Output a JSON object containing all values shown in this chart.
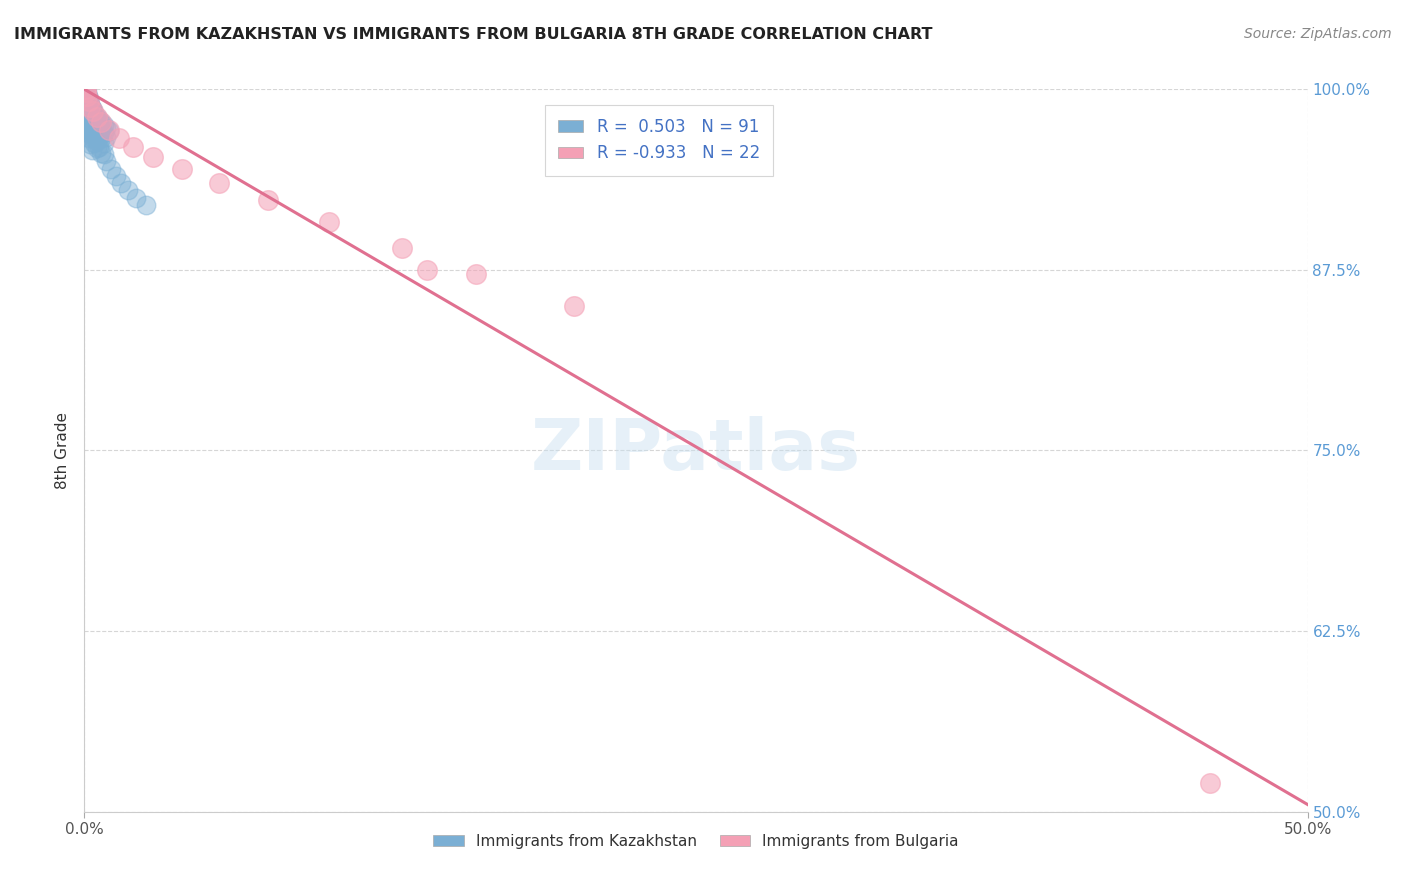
{
  "title": "IMMIGRANTS FROM KAZAKHSTAN VS IMMIGRANTS FROM BULGARIA 8TH GRADE CORRELATION CHART",
  "source": "Source: ZipAtlas.com",
  "ylabel_label": "8th Grade",
  "xlim": [
    0.0,
    50.0
  ],
  "ylim": [
    50.0,
    100.0
  ],
  "color_blue": "#7bafd4",
  "color_pink": "#f4a0b5",
  "line_color": "#e07090",
  "blue_scatter_x": [
    0.05,
    0.08,
    0.1,
    0.12,
    0.15,
    0.18,
    0.2,
    0.22,
    0.25,
    0.28,
    0.3,
    0.35,
    0.4,
    0.45,
    0.5,
    0.05,
    0.08,
    0.1,
    0.15,
    0.2,
    0.25,
    0.3,
    0.35,
    0.4,
    0.5,
    0.6,
    0.7,
    0.8,
    0.9,
    1.0,
    0.05,
    0.1,
    0.15,
    0.2,
    0.25,
    0.3,
    0.35,
    0.4,
    0.5,
    0.6,
    0.7,
    0.8,
    0.9,
    0.05,
    0.1,
    0.15,
    0.2,
    0.25,
    0.3,
    0.35,
    0.4,
    0.5,
    0.6,
    0.7,
    0.8,
    0.05,
    0.1,
    0.15,
    0.2,
    0.25,
    0.3,
    0.35,
    0.4,
    0.5,
    0.6,
    0.7,
    0.05,
    0.1,
    0.15,
    0.2,
    0.25,
    0.3,
    0.35,
    0.4,
    0.5,
    0.05,
    0.1,
    0.15,
    0.2,
    0.25,
    0.3,
    0.8,
    0.9,
    1.1,
    1.3,
    1.5,
    1.8,
    2.1,
    2.5
  ],
  "blue_scatter_y": [
    100.0,
    100.0,
    99.8,
    99.6,
    99.5,
    99.3,
    99.1,
    98.9,
    98.8,
    98.6,
    98.5,
    98.3,
    98.1,
    97.9,
    97.8,
    99.9,
    99.7,
    99.5,
    99.3,
    99.1,
    98.9,
    98.7,
    98.5,
    98.3,
    98.1,
    97.9,
    97.7,
    97.5,
    97.3,
    97.1,
    99.6,
    99.4,
    99.2,
    99.0,
    98.8,
    98.6,
    98.4,
    98.2,
    97.9,
    97.6,
    97.3,
    97.0,
    96.7,
    99.3,
    99.1,
    98.9,
    98.7,
    98.4,
    98.1,
    97.8,
    97.5,
    97.2,
    96.9,
    96.6,
    96.3,
    98.9,
    98.6,
    98.3,
    98.0,
    97.7,
    97.4,
    97.1,
    96.8,
    96.4,
    96.0,
    95.6,
    98.4,
    98.1,
    97.8,
    97.5,
    97.2,
    96.9,
    96.6,
    96.3,
    95.9,
    97.8,
    97.4,
    97.0,
    96.6,
    96.2,
    95.8,
    95.5,
    95.0,
    94.5,
    94.0,
    93.5,
    93.0,
    92.5,
    92.0
  ],
  "pink_scatter_x": [
    0.05,
    0.08,
    0.12,
    0.18,
    0.25,
    0.35,
    0.5,
    0.7,
    1.0,
    1.4,
    2.0,
    2.8,
    4.0,
    5.5,
    7.5,
    10.0,
    13.0,
    16.0,
    20.0,
    14.0,
    46.0
  ],
  "pink_scatter_y": [
    100.0,
    99.8,
    99.5,
    99.2,
    98.8,
    98.5,
    98.1,
    97.7,
    97.2,
    96.6,
    96.0,
    95.3,
    94.5,
    93.5,
    92.3,
    90.8,
    89.0,
    87.2,
    85.0,
    87.5,
    52.0
  ],
  "regression_line_x": [
    0.0,
    50.0
  ],
  "regression_line_y": [
    100.0,
    50.5
  ]
}
